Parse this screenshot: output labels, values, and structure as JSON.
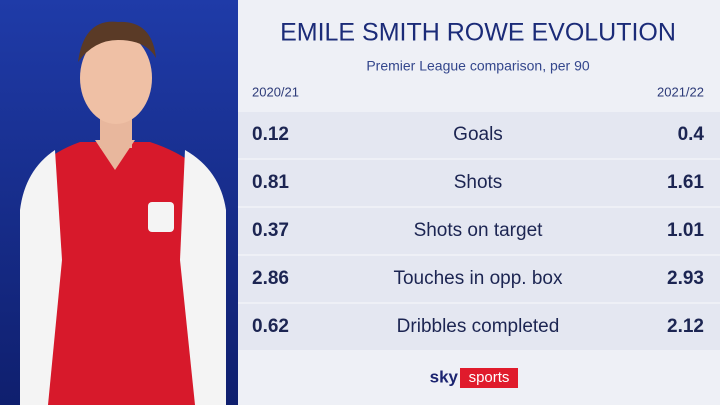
{
  "header": {
    "title": "EMILE SMITH ROWE EVOLUTION",
    "subtitle": "Premier League comparison, per 90"
  },
  "table": {
    "columns": [
      "2020/21",
      "2021/22"
    ],
    "rows": [
      {
        "label": "Goals",
        "left": "0.12",
        "right": "0.4"
      },
      {
        "label": "Shots",
        "left": "0.81",
        "right": "1.61"
      },
      {
        "label": "Shots on target",
        "left": "0.37",
        "right": "1.01"
      },
      {
        "label": "Touches in opp. box",
        "left": "2.86",
        "right": "2.93"
      },
      {
        "label": "Dribbles completed",
        "left": "0.62",
        "right": "2.12"
      }
    ]
  },
  "logo": {
    "brand": "sky",
    "product": "sports"
  }
}
